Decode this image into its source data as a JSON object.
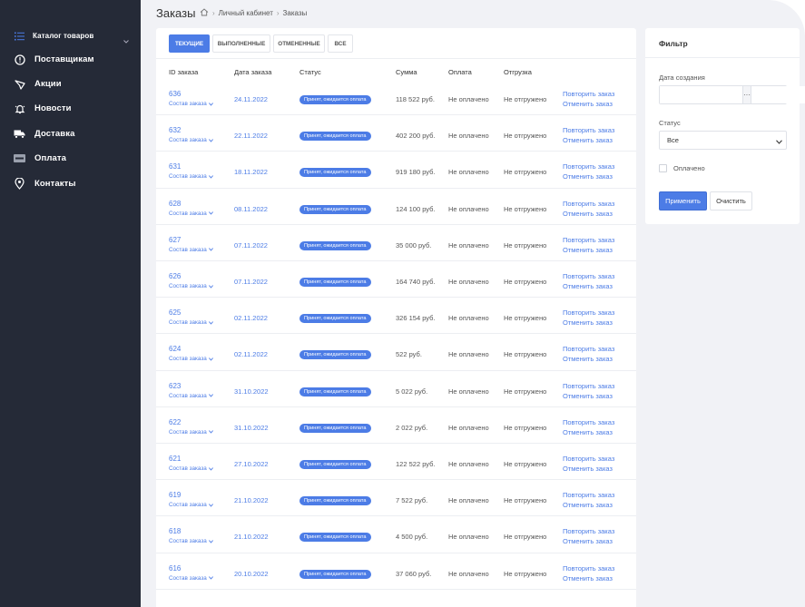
{
  "sidebar": {
    "items": [
      {
        "label": "Каталог товаров",
        "icon": "list-icon"
      },
      {
        "label": "Поставщикам",
        "icon": "info-circle-icon"
      },
      {
        "label": "Акции",
        "icon": "megaphone-icon"
      },
      {
        "label": "Новости",
        "icon": "bell-icon"
      },
      {
        "label": "Доставка",
        "icon": "truck-icon"
      },
      {
        "label": "Оплата",
        "icon": "visa-card-icon"
      },
      {
        "label": "Контакты",
        "icon": "location-pin-icon"
      }
    ]
  },
  "header": {
    "title": "Заказы",
    "breadcrumb": {
      "sep": "›",
      "items": [
        "Личный кабинет",
        "Заказы"
      ]
    }
  },
  "tabs": [
    {
      "label": "ТЕКУЩИЕ",
      "active": true
    },
    {
      "label": "ВЫПОЛНЕННЫЕ",
      "active": false
    },
    {
      "label": "ОТМЕНЕННЫЕ",
      "active": false
    },
    {
      "label": "ВСЕ",
      "active": false
    }
  ],
  "table": {
    "columns": {
      "id": "ID заказа",
      "date": "Дата заказа",
      "status": "Статус",
      "sum": "Сумма",
      "payment": "Оплата",
      "shipment": "Отгрузка"
    },
    "composition_label": "Состав заказа",
    "repeat_label": "Повторить заказ",
    "cancel_label": "Отменить заказ",
    "rows": [
      {
        "id": "636",
        "date": "24.11.2022",
        "status": "Принят, ожидается оплата",
        "sum": "118 522 руб.",
        "payment": "Не оплачено",
        "shipment": "Не отгружено"
      },
      {
        "id": "632",
        "date": "22.11.2022",
        "status": "Принят, ожидается оплата",
        "sum": "402 200 руб.",
        "payment": "Не оплачено",
        "shipment": "Не отгружено"
      },
      {
        "id": "631",
        "date": "18.11.2022",
        "status": "Принят, ожидается оплата",
        "sum": "919 180 руб.",
        "payment": "Не оплачено",
        "shipment": "Не отгружено"
      },
      {
        "id": "628",
        "date": "08.11.2022",
        "status": "Принят, ожидается оплата",
        "sum": "124 100 руб.",
        "payment": "Не оплачено",
        "shipment": "Не отгружено"
      },
      {
        "id": "627",
        "date": "07.11.2022",
        "status": "Принят, ожидается оплата",
        "sum": "35 000 руб.",
        "payment": "Не оплачено",
        "shipment": "Не отгружено"
      },
      {
        "id": "626",
        "date": "07.11.2022",
        "status": "Принят, ожидается оплата",
        "sum": "164 740 руб.",
        "payment": "Не оплачено",
        "shipment": "Не отгружено"
      },
      {
        "id": "625",
        "date": "02.11.2022",
        "status": "Принят, ожидается оплата",
        "sum": "326 154 руб.",
        "payment": "Не оплачено",
        "shipment": "Не отгружено"
      },
      {
        "id": "624",
        "date": "02.11.2022",
        "status": "Принят, ожидается оплата",
        "sum": "522 руб.",
        "payment": "Не оплачено",
        "shipment": "Не отгружено"
      },
      {
        "id": "623",
        "date": "31.10.2022",
        "status": "Принят, ожидается оплата",
        "sum": "5 022 руб.",
        "payment": "Не оплачено",
        "shipment": "Не отгружено"
      },
      {
        "id": "622",
        "date": "31.10.2022",
        "status": "Принят, ожидается оплата",
        "sum": "2 022 руб.",
        "payment": "Не оплачено",
        "shipment": "Не отгружено"
      },
      {
        "id": "621",
        "date": "27.10.2022",
        "status": "Принят, ожидается оплата",
        "sum": "122 522 руб.",
        "payment": "Не оплачено",
        "shipment": "Не отгружено"
      },
      {
        "id": "619",
        "date": "21.10.2022",
        "status": "Принят, ожидается оплата",
        "sum": "7 522 руб.",
        "payment": "Не оплачено",
        "shipment": "Не отгружено"
      },
      {
        "id": "618",
        "date": "21.10.2022",
        "status": "Принят, ожидается оплата",
        "sum": "4 500 руб.",
        "payment": "Не оплачено",
        "shipment": "Не отгружено"
      },
      {
        "id": "616",
        "date": "20.10.2022",
        "status": "Принят, ожидается оплата",
        "sum": "37 060 руб.",
        "payment": "Не оплачено",
        "shipment": "Не отгружено"
      }
    ]
  },
  "filter": {
    "title": "Фильтр",
    "date_label": "Дата создания",
    "date_from": "",
    "date_to": "",
    "date_sep": "···",
    "status_label": "Статус",
    "status_value": "Все",
    "paid_label": "Оплачено",
    "apply_label": "Применить",
    "clear_label": "Очистить"
  },
  "colors": {
    "accent": "#4c7ce6",
    "sidebar": "#252a37",
    "background": "#f1f2f6"
  }
}
